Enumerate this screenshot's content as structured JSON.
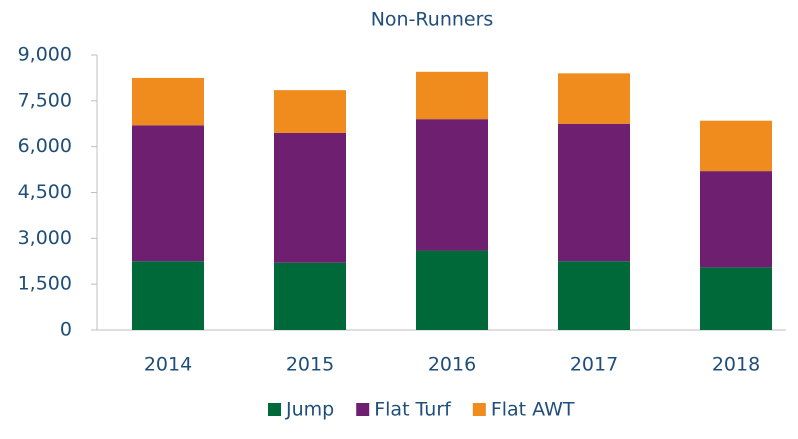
{
  "chart_data": {
    "type": "stacked_bar",
    "title": "Non-Runners",
    "categories": [
      "2014",
      "2015",
      "2016",
      "2017",
      "2018"
    ],
    "series": [
      {
        "name": "Jump",
        "color": "#00693a",
        "values": [
          2250,
          2200,
          2600,
          2250,
          2050
        ]
      },
      {
        "name": "Flat Turf",
        "color": "#6e1f6f",
        "values": [
          4450,
          4250,
          4300,
          4500,
          3150
        ]
      },
      {
        "name": "Flat AWT",
        "color": "#f08c1e",
        "values": [
          1550,
          1400,
          1550,
          1650,
          1650
        ]
      }
    ],
    "ylim": [
      0,
      9000
    ],
    "yticks": [
      0,
      {
        "value": 1500,
        "label": "1,500"
      },
      {
        "value": 3000,
        "label": "3,000"
      },
      {
        "value": 4500,
        "label": "4,500"
      },
      {
        "value": 6000,
        "label": "6,000"
      },
      {
        "value": 7500,
        "label": "7,500"
      },
      {
        "value": 9000,
        "label": "9,000"
      }
    ],
    "legend": "bottom"
  }
}
